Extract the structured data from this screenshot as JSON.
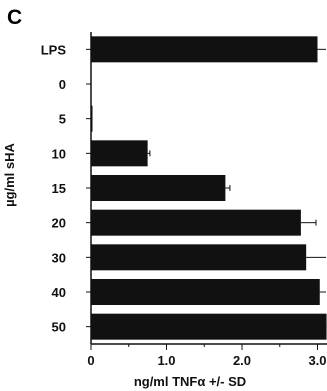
{
  "panel_label": "C",
  "chart_data": {
    "type": "bar",
    "orientation": "horizontal",
    "title": "",
    "xlabel": "ng/ml TNFα +/- SD",
    "ylabel": "µg/ml sHA",
    "categories": [
      "LPS",
      "0",
      "5",
      "10",
      "15",
      "20",
      "30",
      "40",
      "50"
    ],
    "values": [
      3.0,
      0.0,
      0.02,
      0.75,
      1.78,
      2.78,
      2.85,
      3.03,
      3.12
    ],
    "errors": [
      0.18,
      0.0,
      0.0,
      0.03,
      0.06,
      0.2,
      0.3,
      0.35,
      0.1
    ],
    "x_ticks": [
      0,
      1.0,
      2.0,
      3.0
    ],
    "x_tick_labels": [
      "0",
      "1.0",
      "2.0",
      "3.0"
    ],
    "xlim": [
      0,
      3.2
    ],
    "grid": false,
    "legend": "none",
    "bar_color": "#111111"
  }
}
